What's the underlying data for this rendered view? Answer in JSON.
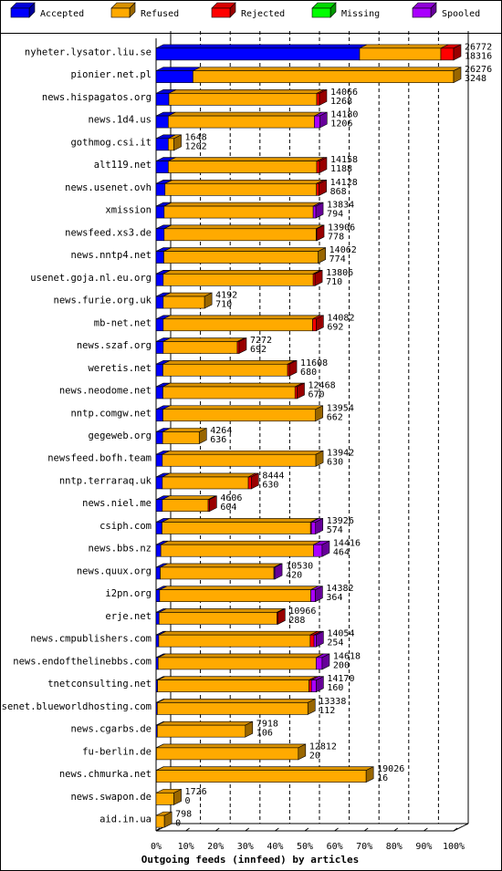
{
  "chart_data": {
    "type": "bar",
    "orientation": "horizontal",
    "stacked": true,
    "xlabel": "Outgoing feeds (innfeed) by articles",
    "xlim": [
      0,
      100
    ],
    "x_ticks": [
      "0%",
      "10%",
      "20%",
      "30%",
      "40%",
      "50%",
      "60%",
      "70%",
      "80%",
      "90%",
      "100%"
    ],
    "legend_position": "top",
    "series": [
      {
        "name": "Accepted",
        "color": "#0000ff"
      },
      {
        "name": "Refused",
        "color": "#ffaa00"
      },
      {
        "name": "Rejected",
        "color": "#ff0000"
      },
      {
        "name": "Missing",
        "color": "#00ff00"
      },
      {
        "name": "Spooled",
        "color": "#aa00ff"
      }
    ],
    "rows": [
      {
        "host": "nyheter.lysator.liu.se",
        "offered": "26772",
        "accepted_label": "18316",
        "parts": [
          68.4,
          27.3,
          4.3,
          0,
          0
        ]
      },
      {
        "host": "pionier.net.pl",
        "offered": "26276",
        "accepted_label": "3248",
        "parts": [
          12.4,
          87.6,
          0,
          0,
          0
        ]
      },
      {
        "host": "news.hispagatos.org",
        "offered": "14066",
        "accepted_label": "1268",
        "parts": [
          4.3,
          49.7,
          0.9,
          0,
          0
        ]
      },
      {
        "host": "news.1d4.us",
        "offered": "14180",
        "accepted_label": "1206",
        "parts": [
          4.1,
          49.1,
          0,
          0,
          1.8
        ]
      },
      {
        "host": "gothmog.csi.it",
        "offered": "1648",
        "accepted_label": "1202",
        "parts": [
          4.1,
          1.9,
          0,
          0,
          0
        ]
      },
      {
        "host": "alt119.net",
        "offered": "14158",
        "accepted_label": "1188",
        "parts": [
          4.1,
          49.9,
          0.9,
          0,
          0
        ]
      },
      {
        "host": "news.usenet.ovh",
        "offered": "14128",
        "accepted_label": "868",
        "parts": [
          3.0,
          50.9,
          0.9,
          0,
          0
        ]
      },
      {
        "host": "xmission",
        "offered": "13834",
        "accepted_label": "794",
        "parts": [
          2.7,
          50.1,
          0,
          0,
          0.9
        ]
      },
      {
        "host": "newsfeed.xs3.de",
        "offered": "13906",
        "accepted_label": "778",
        "parts": [
          2.7,
          51.1,
          0.2,
          0,
          0
        ]
      },
      {
        "host": "news.nntp4.net",
        "offered": "14062",
        "accepted_label": "774",
        "parts": [
          2.6,
          51.9,
          0,
          0,
          0
        ]
      },
      {
        "host": "usenet.goja.nl.eu.org",
        "offered": "13806",
        "accepted_label": "710",
        "parts": [
          2.4,
          50.4,
          0.6,
          0,
          0
        ]
      },
      {
        "host": "news.furie.org.uk",
        "offered": "4192",
        "accepted_label": "710",
        "parts": [
          2.4,
          13.9,
          0,
          0,
          0
        ]
      },
      {
        "host": "mb-net.net",
        "offered": "14082",
        "accepted_label": "692",
        "parts": [
          2.4,
          50.2,
          1.2,
          0,
          0
        ]
      },
      {
        "host": "news.szaf.org",
        "offered": "7272",
        "accepted_label": "692",
        "parts": [
          2.4,
          24.9,
          0.6,
          0,
          0
        ]
      },
      {
        "host": "weretis.net",
        "offered": "11608",
        "accepted_label": "680",
        "parts": [
          2.3,
          41.9,
          0.6,
          0,
          0
        ]
      },
      {
        "host": "news.neodome.net",
        "offered": "12468",
        "accepted_label": "670",
        "parts": [
          2.3,
          44.4,
          0.7,
          0,
          0
        ]
      },
      {
        "host": "nntp.comgw.net",
        "offered": "13954",
        "accepted_label": "662",
        "parts": [
          2.3,
          51.3,
          0,
          0,
          0
        ]
      },
      {
        "host": "gegeweb.org",
        "offered": "4264",
        "accepted_label": "636",
        "parts": [
          2.2,
          12.3,
          0,
          0,
          0
        ]
      },
      {
        "host": "newsfeed.bofh.team",
        "offered": "13942",
        "accepted_label": "630",
        "parts": [
          2.1,
          51.6,
          0,
          0,
          0
        ]
      },
      {
        "host": "nntp.terraraq.uk",
        "offered": "8444",
        "accepted_label": "630",
        "parts": [
          2.1,
          28.9,
          1.0,
          0,
          0
        ]
      },
      {
        "host": "news.niel.me",
        "offered": "4606",
        "accepted_label": "604",
        "parts": [
          2.1,
          15.4,
          0.4,
          0,
          0
        ]
      },
      {
        "host": "csiph.com",
        "offered": "13926",
        "accepted_label": "574",
        "parts": [
          2.0,
          49.9,
          0.3,
          0,
          1.4
        ]
      },
      {
        "host": "news.bbs.nz",
        "offered": "14416",
        "accepted_label": "464",
        "parts": [
          1.6,
          51.3,
          0,
          0,
          2.9
        ]
      },
      {
        "host": "news.quux.org",
        "offered": "10530",
        "accepted_label": "420",
        "parts": [
          1.4,
          38.2,
          0,
          0,
          0.3
        ]
      },
      {
        "host": "i2pn.org",
        "offered": "14382",
        "accepted_label": "364",
        "parts": [
          1.2,
          50.8,
          0,
          0,
          1.5
        ]
      },
      {
        "host": "erje.net",
        "offered": "10966",
        "accepted_label": "288",
        "parts": [
          1.0,
          39.6,
          0.3,
          0,
          0
        ]
      },
      {
        "host": "news.cmpublishers.com",
        "offered": "14054",
        "accepted_label": "254",
        "parts": [
          0.9,
          50.9,
          1.3,
          0,
          0.7
        ]
      },
      {
        "host": "news.endofthelinebbs.com",
        "offered": "14618",
        "accepted_label": "200",
        "parts": [
          0.7,
          53.1,
          0,
          0,
          2.0
        ]
      },
      {
        "host": "tnetconsulting.net",
        "offered": "14170",
        "accepted_label": "160",
        "parts": [
          0.5,
          50.9,
          0.8,
          0,
          1.6
        ]
      },
      {
        "host": "usenet.blueworldhosting.com",
        "offered": "13338",
        "accepted_label": "112",
        "parts": [
          0.4,
          50.6,
          0,
          0,
          0
        ]
      },
      {
        "host": "news.cgarbs.de",
        "offered": "7918",
        "accepted_label": "106",
        "parts": [
          0.4,
          29.6,
          0,
          0,
          0
        ]
      },
      {
        "host": "fu-berlin.de",
        "offered": "12812",
        "accepted_label": "20",
        "parts": [
          0.1,
          47.7,
          0,
          0,
          0
        ]
      },
      {
        "host": "news.chmurka.net",
        "offered": "19026",
        "accepted_label": "16",
        "parts": [
          0.1,
          70.5,
          0,
          0,
          0
        ]
      },
      {
        "host": "news.swapon.de",
        "offered": "1726",
        "accepted_label": "0",
        "parts": [
          0,
          6.0,
          0,
          0,
          0
        ]
      },
      {
        "host": "aid.in.ua",
        "offered": "798",
        "accepted_label": "0",
        "parts": [
          0,
          2.8,
          0,
          0,
          0
        ]
      }
    ]
  }
}
